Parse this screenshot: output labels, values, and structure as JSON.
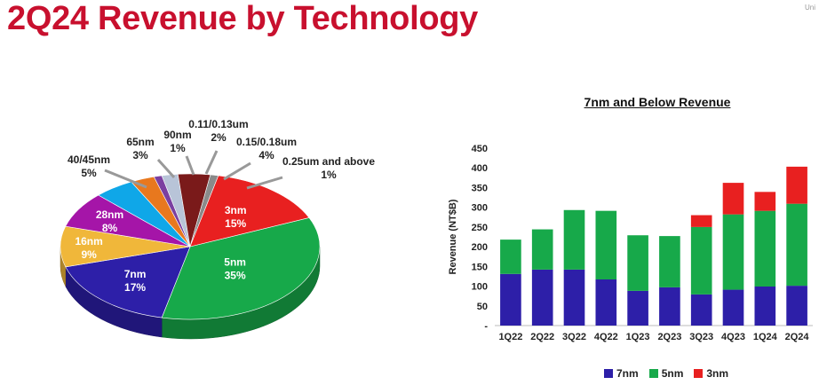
{
  "page": {
    "title": "2Q24 Revenue by Technology",
    "corner_text": "Uni"
  },
  "chart_data": [
    {
      "type": "pie",
      "title": "",
      "slices": [
        {
          "label": "5nm",
          "value": 35,
          "display": "35%",
          "color": "#17a94a"
        },
        {
          "label": "7nm",
          "value": 17,
          "display": "17%",
          "color": "#2d1fa8"
        },
        {
          "label": "16nm",
          "value": 9,
          "display": "9%",
          "color": "#f0b73a"
        },
        {
          "label": "28nm",
          "value": 8,
          "display": "8%",
          "color": "#a515a8"
        },
        {
          "label": "40/45nm",
          "value": 5,
          "display": "5%",
          "color": "#0fa7e8"
        },
        {
          "label": "65nm",
          "value": 3,
          "display": "3%",
          "color": "#e8781e"
        },
        {
          "label": "90nm",
          "value": 1,
          "display": "1%",
          "color": "#7b3fa0"
        },
        {
          "label": "0.11/0.13um",
          "value": 2,
          "display": "2%",
          "color": "#b8c4d8"
        },
        {
          "label": "0.15/0.18um",
          "value": 4,
          "display": "4%",
          "color": "#7a1a1a"
        },
        {
          "label": "0.25um and above",
          "value": 1,
          "display": "1%",
          "color": "#8a8a8a"
        },
        {
          "label": "3nm",
          "value": 15,
          "display": "15%",
          "color": "#e82020"
        }
      ]
    },
    {
      "type": "bar",
      "stacked": true,
      "title": "7nm and Below Revenue",
      "xlabel": "",
      "ylabel": "Revenue (NT$B)",
      "ylim": [
        0,
        450
      ],
      "yticks": [
        "-",
        "50",
        "100",
        "150",
        "200",
        "250",
        "300",
        "350",
        "400",
        "450"
      ],
      "categories": [
        "1Q22",
        "2Q22",
        "3Q22",
        "4Q22",
        "1Q23",
        "2Q23",
        "3Q23",
        "4Q23",
        "1Q24",
        "2Q24"
      ],
      "series": [
        {
          "name": "7nm",
          "color": "#2d1fa8",
          "values": [
            131,
            142,
            142,
            117,
            88,
            97,
            79,
            91,
            99,
            101
          ]
        },
        {
          "name": "5nm",
          "color": "#17a94a",
          "values": [
            87,
            102,
            151,
            174,
            141,
            130,
            171,
            191,
            192,
            208
          ]
        },
        {
          "name": "3nm",
          "color": "#e82020",
          "values": [
            0,
            0,
            0,
            0,
            0,
            0,
            30,
            80,
            48,
            94
          ]
        }
      ],
      "grid": false,
      "legend_position": "bottom"
    }
  ]
}
